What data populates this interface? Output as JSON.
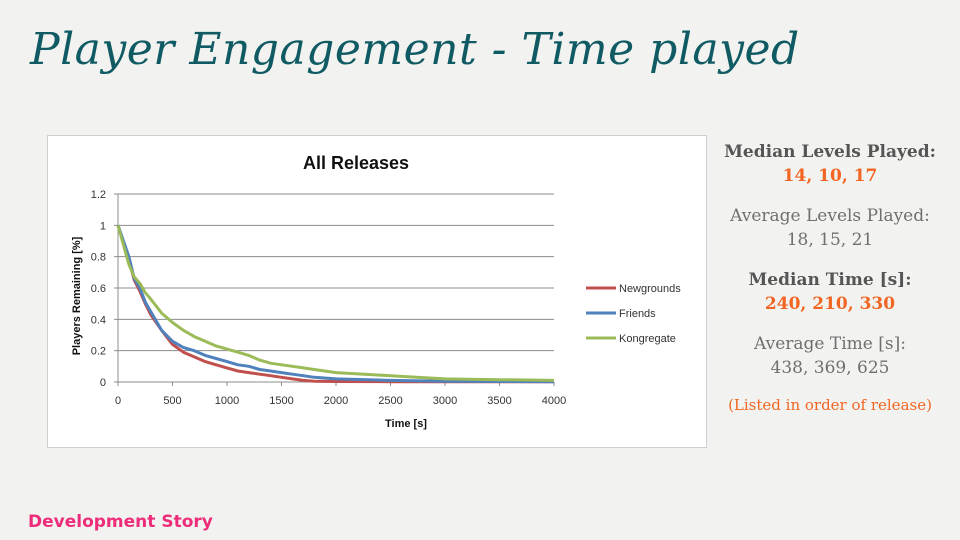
{
  "slide": {
    "title": "Player Engagement - Time played",
    "footer": "Development Story"
  },
  "stats": {
    "median_levels_label": "Median Levels Played:",
    "median_levels_value": "14, 10, 17",
    "average_levels_label": "Average Levels Played:",
    "average_levels_value": "18, 15, 21",
    "median_time_label": "Median Time [s]:",
    "median_time_value": "240, 210, 330",
    "average_time_label": "Average Time [s]:",
    "average_time_value": "438, 369, 625",
    "note": "(Listed in order of release)"
  },
  "colors": {
    "title": "#0f5a63",
    "accent": "#f26522",
    "footer": "#ee2d7a",
    "newgrounds": "#c0504d",
    "friends": "#4f81bd",
    "kongregate": "#9bbb59"
  },
  "chart_data": {
    "type": "line",
    "title": "All Releases",
    "xlabel": "Time [s]",
    "ylabel": "Players Remaining [%]",
    "xlim": [
      0,
      4000
    ],
    "ylim": [
      0,
      1.2
    ],
    "xticks": [
      "0",
      "500",
      "1000",
      "1500",
      "2000",
      "2500",
      "3000",
      "3500",
      "4000"
    ],
    "yticks": [
      "0",
      "0.2",
      "0.4",
      "0.6",
      "0.8",
      "1",
      "1.2"
    ],
    "grid": true,
    "legend_position": "right",
    "series": [
      {
        "name": "Newgrounds",
        "color": "#c0504d",
        "x": [
          0,
          100,
          150,
          200,
          250,
          300,
          400,
          500,
          600,
          700,
          800,
          900,
          1000,
          1100,
          1200,
          1300,
          1400,
          1500,
          1600,
          1700,
          1800,
          2000,
          2500,
          3000,
          3500,
          4000
        ],
        "y": [
          1.0,
          0.78,
          0.65,
          0.58,
          0.5,
          0.43,
          0.33,
          0.24,
          0.19,
          0.16,
          0.13,
          0.11,
          0.09,
          0.07,
          0.06,
          0.05,
          0.04,
          0.03,
          0.02,
          0.01,
          0.005,
          0.003,
          0.002,
          0.001,
          0.001,
          0.001
        ]
      },
      {
        "name": "Friends",
        "color": "#4f81bd",
        "x": [
          0,
          100,
          150,
          200,
          250,
          300,
          400,
          500,
          600,
          700,
          800,
          900,
          1000,
          1100,
          1200,
          1300,
          1400,
          1500,
          1600,
          1700,
          1800,
          2000,
          2500,
          3000,
          3500,
          4000
        ],
        "y": [
          1.0,
          0.8,
          0.66,
          0.6,
          0.51,
          0.45,
          0.33,
          0.26,
          0.22,
          0.2,
          0.17,
          0.15,
          0.13,
          0.11,
          0.1,
          0.08,
          0.07,
          0.06,
          0.05,
          0.04,
          0.03,
          0.02,
          0.01,
          0.005,
          0.003,
          0.002
        ]
      },
      {
        "name": "Kongregate",
        "color": "#9bbb59",
        "x": [
          0,
          100,
          150,
          200,
          250,
          300,
          400,
          500,
          600,
          700,
          800,
          900,
          1000,
          1100,
          1200,
          1300,
          1400,
          1500,
          1600,
          1700,
          1800,
          2000,
          2500,
          3000,
          3500,
          4000
        ],
        "y": [
          1.0,
          0.75,
          0.67,
          0.63,
          0.57,
          0.53,
          0.44,
          0.38,
          0.33,
          0.29,
          0.26,
          0.23,
          0.21,
          0.19,
          0.17,
          0.14,
          0.12,
          0.11,
          0.1,
          0.09,
          0.08,
          0.06,
          0.04,
          0.02,
          0.015,
          0.01
        ]
      }
    ]
  }
}
